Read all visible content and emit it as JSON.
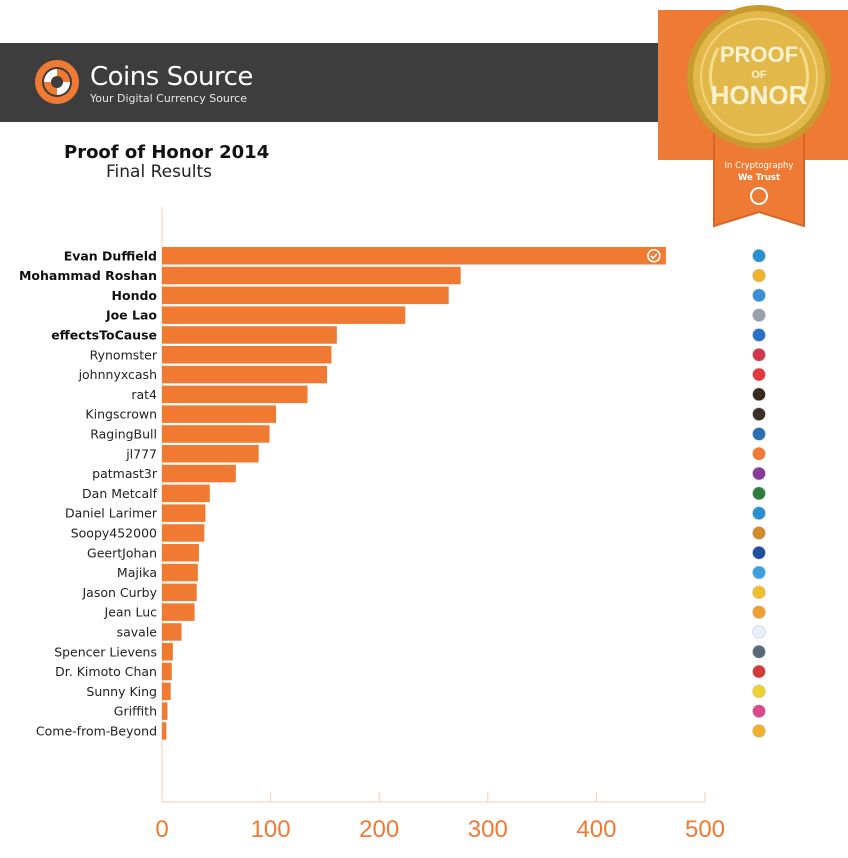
{
  "header": {
    "brand_name": "Coins Source",
    "tagline": "Your Digital Currency Source",
    "logo_icon": "coins-source-logo-icon",
    "background_color": "#3d3d3d"
  },
  "badge": {
    "line1": "PROOF",
    "line2": "OF",
    "line3": "HONOR",
    "ribbon_line1": "In Cryptography",
    "ribbon_line2": "We Trust",
    "ribbon_color": "#ee7a33",
    "medal_color": "#e3b84a"
  },
  "chart_data": {
    "type": "bar",
    "orientation": "horizontal",
    "title": "Proof of Honor 2014",
    "subtitle": "Final Results",
    "bar_color": "#f07a32",
    "xlim": [
      0,
      500
    ],
    "xticks": [
      0,
      100,
      200,
      300,
      400,
      500
    ],
    "winner_marker_icon": "check-circle-icon",
    "categories": [
      "Evan Duffield",
      "Mohammad Roshan",
      "Hondo",
      "Joe Lao",
      "effectsToCause",
      "Rynomster",
      "johnnyxcash",
      "rat4",
      "Kingscrown",
      "RagingBull",
      "jl777",
      "patmast3r",
      "Dan Metcalf",
      "Daniel Larimer",
      "Soopy452000",
      "GeertJohan",
      "Majika",
      "Jason Curby",
      "Jean Luc",
      "savale",
      "Spencer Lievens",
      "Dr. Kimoto Chan",
      "Sunny King",
      "Griffith",
      "Come-from-Beyond"
    ],
    "bold_categories": [
      "Evan Duffield",
      "Mohammad Roshan",
      "Hondo",
      "Joe Lao",
      "effectsToCause"
    ],
    "values": [
      464,
      275,
      264,
      224,
      161,
      156,
      152,
      134,
      105,
      99,
      89,
      68,
      44,
      40,
      39,
      34,
      33,
      32,
      30,
      18,
      10,
      9,
      8,
      5,
      4
    ],
    "coin_icons": [
      "darkcoin-icon",
      "star-coin-icon",
      "blue-x-coin-icon",
      "silver-coin-icon",
      "v-coin-icon",
      "red-hex-coin-icon",
      "red-cross-coin-icon",
      "dark-b-coin-icon",
      "dark-stack-coin-icon",
      "blue-network-coin-icon",
      "orange-swirl-coin-icon",
      "purple-branch-coin-icon",
      "green-x-coin-icon",
      "blue-b-coin-icon",
      "no-sign-coin-icon",
      "blue-g-coin-icon",
      "blue-a-coin-icon",
      "gold-coin-icon",
      "orange-s-coin-icon",
      "white-nxt-coin-icon",
      "grey-coin-icon",
      "red-grid-coin-icon",
      "yellow-p-coin-icon",
      "colorful-m-coin-icon",
      "gold-s-coin-icon"
    ]
  }
}
